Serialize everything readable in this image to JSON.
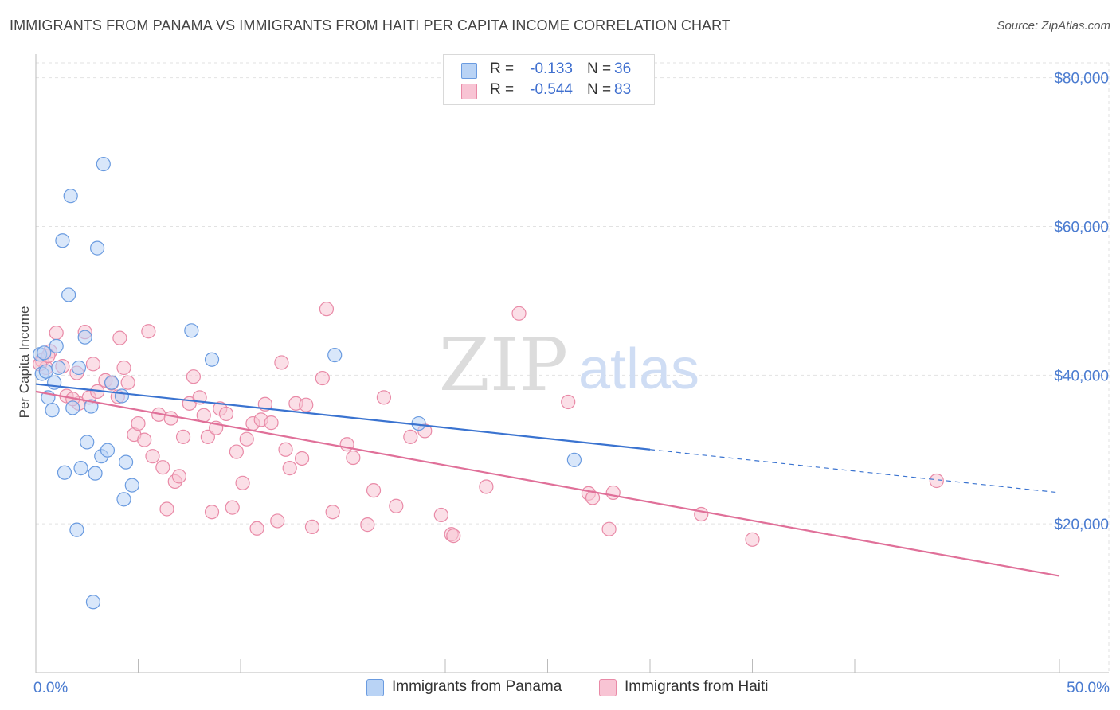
{
  "title": "IMMIGRANTS FROM PANAMA VS IMMIGRANTS FROM HAITI PER CAPITA INCOME CORRELATION CHART",
  "source": "Source: ZipAtlas.com",
  "watermark": {
    "zip": "ZIP",
    "atlas": "atlas"
  },
  "legend": {
    "r_label": "R =",
    "n_label": "N =",
    "series": [
      {
        "r": "-0.133",
        "n": "36"
      },
      {
        "r": "-0.544",
        "n": "83"
      }
    ]
  },
  "bottom_legend": [
    "Immigrants from Panama",
    "Immigrants from Haiti"
  ],
  "colors": {
    "panama_fill": "#b9d3f5",
    "panama_stroke": "#6a9be0",
    "panama_line": "#3a73d0",
    "haiti_fill": "#f8c4d4",
    "haiti_stroke": "#e98aa7",
    "haiti_line": "#e07099",
    "axis_text": "#4a7bd0",
    "grid": "#e2e2e2"
  },
  "chart_data": {
    "type": "scatter",
    "title": "IMMIGRANTS FROM PANAMA VS IMMIGRANTS FROM HAITI PER CAPITA INCOME CORRELATION CHART",
    "xlabel": "",
    "ylabel": "Per Capita Income",
    "xlim": [
      0,
      50
    ],
    "ylim": [
      0,
      82000
    ],
    "x_tick_labels": [
      "0.0%",
      "50.0%"
    ],
    "y_ticks": [
      20000,
      40000,
      60000,
      80000
    ],
    "y_tick_labels": [
      "$20,000",
      "$40,000",
      "$60,000",
      "$80,000"
    ],
    "series": [
      {
        "name": "Immigrants from Panama",
        "trend": {
          "x0": 0,
          "y0": 38800,
          "x1": 30,
          "y1": 30000,
          "dash_to_x": 50,
          "dash_to_y": 24200
        },
        "points": [
          [
            0.2,
            42800
          ],
          [
            0.3,
            40200
          ],
          [
            0.4,
            43000
          ],
          [
            0.5,
            40500
          ],
          [
            0.6,
            37000
          ],
          [
            0.8,
            35300
          ],
          [
            0.9,
            39000
          ],
          [
            1.0,
            43900
          ],
          [
            1.1,
            41000
          ],
          [
            1.3,
            58100
          ],
          [
            1.4,
            26900
          ],
          [
            1.6,
            50800
          ],
          [
            1.7,
            64100
          ],
          [
            1.8,
            35600
          ],
          [
            2.0,
            19200
          ],
          [
            2.1,
            41000
          ],
          [
            2.2,
            27500
          ],
          [
            2.4,
            45100
          ],
          [
            2.5,
            31000
          ],
          [
            2.7,
            35800
          ],
          [
            2.9,
            26800
          ],
          [
            3.0,
            57100
          ],
          [
            3.2,
            29100
          ],
          [
            3.3,
            68400
          ],
          [
            3.5,
            29900
          ],
          [
            3.7,
            39000
          ],
          [
            4.2,
            37200
          ],
          [
            4.4,
            28300
          ],
          [
            4.7,
            25200
          ],
          [
            4.3,
            23300
          ],
          [
            2.8,
            9500
          ],
          [
            7.6,
            46000
          ],
          [
            8.6,
            42100
          ],
          [
            14.6,
            42700
          ],
          [
            18.7,
            33500
          ],
          [
            26.3,
            28600
          ]
        ]
      },
      {
        "name": "Immigrants from Haiti",
        "trend": {
          "x0": 0,
          "y0": 37800,
          "x1": 50,
          "y1": 13000
        },
        "points": [
          [
            0.3,
            42000
          ],
          [
            0.5,
            41000
          ],
          [
            0.7,
            43200
          ],
          [
            1.0,
            45700
          ],
          [
            1.3,
            41200
          ],
          [
            1.5,
            37200
          ],
          [
            2.0,
            40300
          ],
          [
            2.1,
            36200
          ],
          [
            2.4,
            45800
          ],
          [
            2.6,
            37000
          ],
          [
            2.8,
            41500
          ],
          [
            3.0,
            37800
          ],
          [
            3.4,
            39300
          ],
          [
            3.7,
            38900
          ],
          [
            4.0,
            37100
          ],
          [
            4.1,
            45000
          ],
          [
            4.3,
            41000
          ],
          [
            4.5,
            39000
          ],
          [
            4.8,
            32000
          ],
          [
            5.0,
            33500
          ],
          [
            5.3,
            31300
          ],
          [
            5.5,
            45900
          ],
          [
            5.7,
            29100
          ],
          [
            6.0,
            34700
          ],
          [
            6.2,
            27600
          ],
          [
            6.4,
            22000
          ],
          [
            6.6,
            34200
          ],
          [
            6.8,
            25700
          ],
          [
            7.0,
            26400
          ],
          [
            7.2,
            31700
          ],
          [
            7.5,
            36200
          ],
          [
            7.7,
            39800
          ],
          [
            8.0,
            37000
          ],
          [
            8.2,
            34600
          ],
          [
            8.4,
            31700
          ],
          [
            8.6,
            21600
          ],
          [
            8.8,
            32900
          ],
          [
            9.0,
            35500
          ],
          [
            9.3,
            34800
          ],
          [
            9.6,
            22200
          ],
          [
            9.8,
            29700
          ],
          [
            10.1,
            25500
          ],
          [
            10.3,
            31400
          ],
          [
            10.6,
            33500
          ],
          [
            10.8,
            19400
          ],
          [
            11.0,
            34000
          ],
          [
            11.2,
            36100
          ],
          [
            11.5,
            33600
          ],
          [
            11.8,
            20400
          ],
          [
            12.0,
            41700
          ],
          [
            12.2,
            30000
          ],
          [
            12.4,
            27500
          ],
          [
            12.7,
            36200
          ],
          [
            13.0,
            28800
          ],
          [
            13.2,
            36000
          ],
          [
            13.5,
            19600
          ],
          [
            14.0,
            39600
          ],
          [
            14.2,
            48900
          ],
          [
            14.5,
            21600
          ],
          [
            15.2,
            30700
          ],
          [
            15.5,
            28900
          ],
          [
            16.2,
            19900
          ],
          [
            16.5,
            24500
          ],
          [
            17.0,
            37000
          ],
          [
            17.6,
            22400
          ],
          [
            18.3,
            31700
          ],
          [
            19.0,
            32500
          ],
          [
            19.8,
            21200
          ],
          [
            20.3,
            18600
          ],
          [
            20.4,
            18400
          ],
          [
            22.0,
            25000
          ],
          [
            23.6,
            48300
          ],
          [
            26.0,
            36400
          ],
          [
            27.0,
            24100
          ],
          [
            27.2,
            23500
          ],
          [
            28.0,
            19300
          ],
          [
            28.2,
            24200
          ],
          [
            32.5,
            21300
          ],
          [
            35.0,
            17900
          ],
          [
            44.0,
            25800
          ],
          [
            0.2,
            41500
          ],
          [
            0.6,
            42600
          ],
          [
            1.8,
            36800
          ]
        ]
      }
    ]
  }
}
